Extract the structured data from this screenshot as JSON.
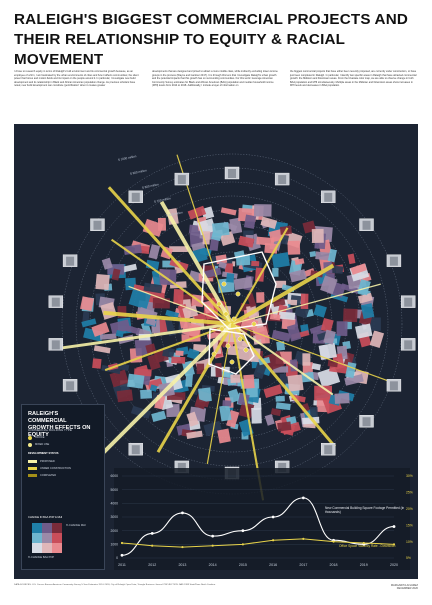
{
  "title_line1": "RALEIGH'S BIGGEST COMMERCIAL PROJECTS AND",
  "title_line2": "THEIR RELATIONSHIP TO EQUITY & RACIAL MOVEMENT",
  "intro": {
    "col1": "I chose to research equity in terms of Raleigh's built environment and its commercial growth because, as an employee of a firm, I am fascinated by the urban environments of cities and how it affects communities; the silent power that forces and motion fields and its impact on the people around it. In particular, I investigate new build development and its relationship in Black and African American population change. As previous scholars have noted, new build development can constitute 'gentrification' when it creates greater",
    "col2": "developments that are designed and priced to attract a more middle class, while indirectly excluding lower-income groups in the process (Wayne and Gardner 2017). It is through this lens that I investigate Raleigh's urban growth and the potential impacts that this growth has on surrounding communities. For this work I leverage American Community Survey estimates for Black and African American (BAA) population and median household income (MHI) levels from 2014 to 2018. Additionally, I include a layer of information on",
    "col3": "the biggest commercial projects that have either been recently proposed, are currently under construction, or have just been completed in Raleigh. In particular, I identify two specific areas in Raleigh that have attracted commercial growth: the Midtown and Downtown areas. From the bivariate color map, we are able to observe change in both BAA population and MHI simultaneously. Multiple areas in the Midtown and Downtown areas show increases in MHI levels and decreases in BAA population."
  },
  "ring_labels": [
    "$ 1000 million",
    "$ 900 million",
    "$ 800 million",
    "$ 700 million",
    "$ 600 million"
  ],
  "legend": {
    "title_line1": "RALEIGH'S COMMERCIAL",
    "title_line2": "GROWTH EFFECTS ON EQUITY",
    "subtitle": "COMMERCIAL BUILDING TYPE",
    "items": [
      {
        "label": "OFFICE",
        "color": "#e9d44a"
      },
      {
        "label": "MIXED USE",
        "color": "#f3e98c"
      },
      {
        "label": "DEVELOPMENT STATUS",
        "color": ""
      },
      {
        "label": "PROPOSED",
        "color": "#f7f2a8"
      },
      {
        "label": "UNDER CONSTRUCTION",
        "color": "#e9d44a"
      },
      {
        "label": "COMPLETED",
        "color": "#a38f18"
      }
    ],
    "bivar_title": "CHANGE IN BAA POP & MHI",
    "bivar_x": "% CHANGE BAA POP",
    "bivar_y": "% CHANGE MHI"
  },
  "chart_data": {
    "type": "line",
    "x": [
      "2011",
      "2012",
      "2013",
      "2014",
      "2015",
      "2016",
      "2017",
      "2018",
      "2019",
      "2020"
    ],
    "y_ticks": [
      "6000",
      "5000",
      "4000",
      "3000",
      "2000",
      "1000",
      "0"
    ],
    "y2_ticks": [
      "30%",
      "25%",
      "20%",
      "15%",
      "10%",
      "5%"
    ],
    "ylim": [
      0,
      6000
    ],
    "series": [
      {
        "name": "New Commercial Building Square Footage Permitted (in thousands)",
        "values": [
          200,
          1800,
          3300,
          1600,
          2000,
          3000,
          4400,
          1300,
          1000,
          2300
        ]
      },
      {
        "name": "Office Space Vacancy Rate - Downtown",
        "values": [
          1100,
          900,
          800,
          900,
          1000,
          1300,
          1400,
          1200,
          1100,
          1000
        ]
      }
    ]
  },
  "footer": "DATA SOURCES: U.S. Census Bureau American Community Survey 5-Year Estimates 2014–2018; City of Raleigh Open Data; Triangle Business Journal. PROJECTION: NAD 1983 StatePlane North Carolina.",
  "author": "MARGARITA ALVAREZ",
  "author_date": "DECEMBER 2020",
  "colors": {
    "panel": "#1c2433",
    "accent": "#e9d44a",
    "blue": "#1f7fa8",
    "red": "#c94e5a"
  }
}
